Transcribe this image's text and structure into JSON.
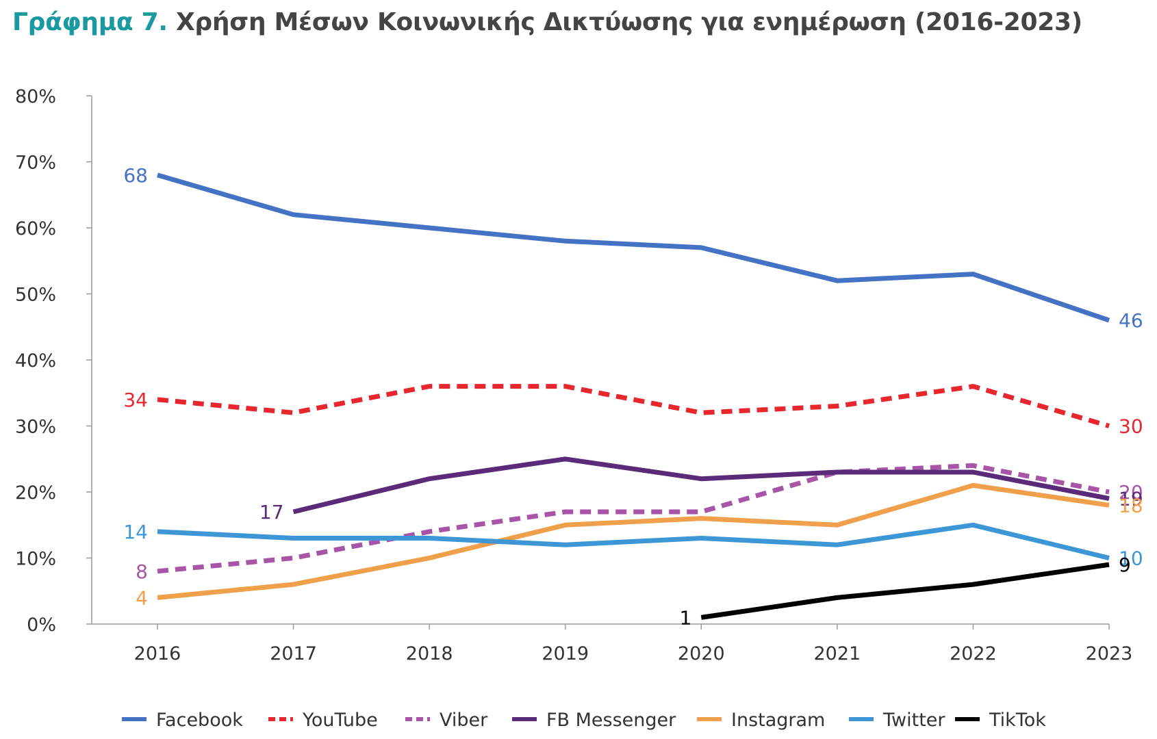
{
  "title": {
    "prefix": "Γράφημα 7.",
    "text": "Χρήση Μέσων Κοινωνικής Δικτύωσης για ενημέρωση (2016-2023)"
  },
  "chart_data": {
    "type": "line",
    "x": [
      "2016",
      "2017",
      "2018",
      "2019",
      "2020",
      "2021",
      "2022",
      "2023"
    ],
    "ylim": [
      0,
      80
    ],
    "yticks": [
      "0%",
      "10%",
      "20%",
      "30%",
      "40%",
      "50%",
      "60%",
      "70%",
      "80%"
    ],
    "grid": false,
    "legend_position": "bottom",
    "series": [
      {
        "name": "Facebook",
        "color": "#4472c4",
        "dashed": false,
        "values": [
          68,
          62,
          60,
          58,
          57,
          52,
          53,
          46
        ],
        "labels": [
          {
            "index": 0,
            "text": "68"
          },
          {
            "index": 7,
            "text": "46"
          }
        ]
      },
      {
        "name": "YouTube",
        "color": "#e8262d",
        "dashed": true,
        "values": [
          34,
          32,
          36,
          36,
          32,
          33,
          36,
          30
        ],
        "labels": [
          {
            "index": 0,
            "text": "34"
          },
          {
            "index": 7,
            "text": "30"
          }
        ]
      },
      {
        "name": "Viber",
        "color": "#a855a8",
        "dashed": true,
        "values": [
          8,
          10,
          14,
          17,
          17,
          23,
          24,
          20
        ],
        "labels": [
          {
            "index": 0,
            "text": "8"
          },
          {
            "index": 7,
            "text": "20"
          }
        ]
      },
      {
        "name": "FB Messenger",
        "color": "#5b2b7a",
        "dashed": false,
        "values": [
          null,
          17,
          22,
          25,
          22,
          23,
          23,
          19
        ],
        "labels": [
          {
            "index": 1,
            "text": "17"
          },
          {
            "index": 7,
            "text": "19"
          }
        ]
      },
      {
        "name": "Instagram",
        "color": "#f0a04b",
        "dashed": false,
        "values": [
          4,
          6,
          10,
          15,
          16,
          15,
          21,
          18
        ],
        "labels": [
          {
            "index": 0,
            "text": "4"
          },
          {
            "index": 7,
            "text": "18"
          }
        ]
      },
      {
        "name": "Twitter",
        "color": "#3d96d6",
        "dashed": false,
        "values": [
          14,
          13,
          13,
          12,
          13,
          12,
          15,
          10
        ],
        "labels": [
          {
            "index": 0,
            "text": "14"
          },
          {
            "index": 7,
            "text": "10"
          }
        ]
      },
      {
        "name": "TikTok",
        "color": "#000000",
        "dashed": false,
        "values": [
          null,
          null,
          null,
          null,
          1,
          4,
          6,
          9
        ],
        "labels": [
          {
            "index": 4,
            "text": "1"
          },
          {
            "index": 7,
            "text": "9"
          }
        ]
      }
    ]
  }
}
